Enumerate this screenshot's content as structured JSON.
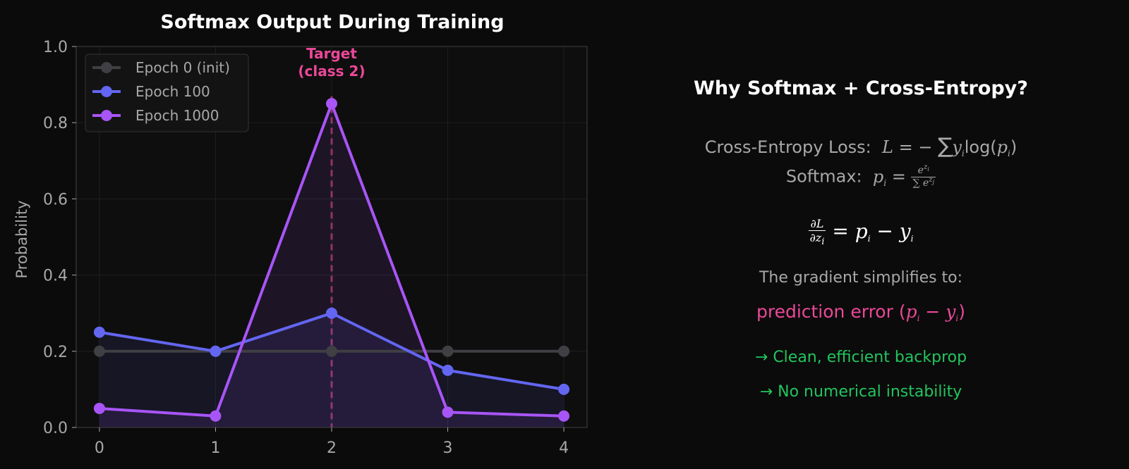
{
  "chart_data": {
    "type": "line",
    "title": "Softmax Output During Training",
    "xlabel": "",
    "ylabel": "Probability",
    "x": [
      0,
      1,
      2,
      3,
      4
    ],
    "xticks": [
      "0",
      "1",
      "2",
      "3",
      "4"
    ],
    "yticks": [
      "0.0",
      "0.2",
      "0.4",
      "0.6",
      "0.8",
      "1.0"
    ],
    "xlim": [
      -0.2,
      4.2
    ],
    "ylim": [
      0,
      1
    ],
    "grid": true,
    "legend_position": "top-left",
    "series": [
      {
        "name": "Epoch 0 (init)",
        "values": [
          0.2,
          0.2,
          0.2,
          0.2,
          0.2
        ],
        "color": "#3f3f44",
        "fill": false
      },
      {
        "name": "Epoch 100",
        "values": [
          0.25,
          0.2,
          0.3,
          0.15,
          0.1
        ],
        "color": "#6366f1",
        "fill": true
      },
      {
        "name": "Epoch 1000",
        "values": [
          0.05,
          0.03,
          0.85,
          0.04,
          0.03
        ],
        "color": "#a855f7",
        "fill": true
      }
    ],
    "target": {
      "x": 2,
      "label_line1": "Target",
      "label_line2": "(class 2)",
      "color": "#ec4899"
    }
  },
  "panel": {
    "title": "Why Softmax + Cross-Entropy?",
    "ce_label": "Cross-Entropy Loss:",
    "softmax_label": "Softmax:",
    "gradient_intro": "The gradient simplifies to:",
    "prediction_error": "prediction error",
    "point1": "→ Clean, efficient backprop",
    "point2": "→ No numerical instability",
    "colors": {
      "title": "#ffffff",
      "text": "#a8a8a8",
      "pink": "#ec4899",
      "green": "#22c55e"
    }
  }
}
